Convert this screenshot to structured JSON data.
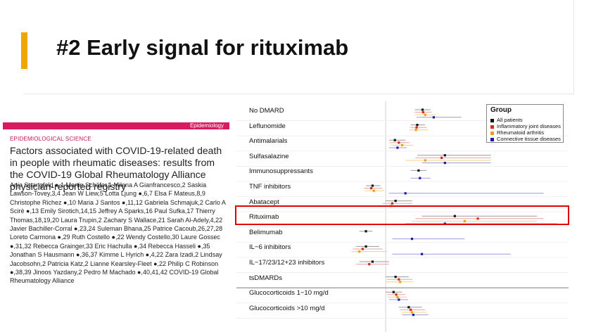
{
  "slide": {
    "title": "#2 Early signal for rituximab",
    "accent_color": "#f0a500"
  },
  "paper": {
    "bar_label": "Epidemiology",
    "bar_color": "#d81b60",
    "section": "EPIDEMIOLOGICAL SCIENCE",
    "title": "Factors associated with COVID-19-related death in people with rheumatic diseases: results from the COVID-19 Global Rheumatology Alliance physician-reported registry",
    "authors": "Anja Strangfeld ●,1 Martin Schäfer,1 Milena A Gianfrancesco,2 Saskia Lawson-Tovey,3,4 Jean W Liew,5 Lotta Ljung ●,6,7 Elsa F Mateus,8,9 Christophe Richez ●,10 Maria J Santos ●,11,12 Gabriela Schmajuk,2 Carlo A Scirè ●,13 Emily Sirotich,14,15 Jeffrey A Sparks,16 Paul Sufka,17 Thierry Thomas,18,19,20 Laura Trupin,2 Zachary S Wallace,21 Sarah Al-Adely,4,22 Javier Bachiller-Corral ●,23,24 Suleman Bhana,25 Patrice Cacoub,26,27,28 Loreto Carmona ●,29 Ruth Costello ●,22 Wendy Costello,30 Laure Gossec ●,31,32 Rebecca Grainger,33 Eric Hachulla ●,34 Rebecca Hasseli ●,35 Jonathan S Hausmann ●,36,37 Kimme L Hyrich ●,4,22 Zara Izadi,2 Lindsay Jacobsohn,2 Patricia Katz,2 Lianne Kearsley-Fleet ●,22 Philip C Robinson ●,38,39 Jinoos Yazdany,2 Pedro M Machado ●,40,41,42 COVID-19 Global Rheumatology Alliance"
  },
  "chart_data": {
    "type": "forest",
    "legend": {
      "title": "Group",
      "position": "top-right",
      "entries": [
        {
          "name": "All patients",
          "color": "#111111"
        },
        {
          "name": "Inflammatory joint diseases",
          "color": "#d62b1f"
        },
        {
          "name": "Rheumatoid arthritis",
          "color": "#f0a000"
        },
        {
          "name": "Connective tissue diseases",
          "color": "#1a1aa8"
        }
      ]
    },
    "highlight": "Rituximab",
    "rows": [
      {
        "label": "No DMARD",
        "est": [
          0.56,
          0.57,
          0.6,
          0.73
        ],
        "lo": [
          0.44,
          0.44,
          0.44,
          0.47
        ],
        "hi": [
          0.68,
          0.7,
          0.76,
          1.15
        ]
      },
      {
        "label": "Leflunomide",
        "est": [
          0.48,
          0.47,
          0.46,
          null
        ],
        "lo": [
          0.38,
          0.37,
          0.36,
          null
        ],
        "hi": [
          0.6,
          0.62,
          0.65,
          null
        ]
      },
      {
        "label": "Antimalarials",
        "est": [
          0.14,
          0.2,
          0.25,
          0.18
        ],
        "lo": [
          0.05,
          0.06,
          0.08,
          0.05
        ],
        "hi": [
          0.3,
          0.36,
          0.42,
          0.32
        ]
      },
      {
        "label": "Sulfasalazine",
        "est": [
          0.9,
          0.85,
          0.6,
          0.9
        ],
        "lo": [
          0.48,
          0.45,
          0.3,
          0.55
        ],
        "hi": [
          1.6,
          1.6,
          1.6,
          1.6
        ]
      },
      {
        "label": "Immunosuppressants",
        "est": [
          0.5,
          null,
          null,
          0.52
        ],
        "lo": [
          0.38,
          null,
          null,
          0.38
        ],
        "hi": [
          0.62,
          null,
          null,
          0.68
        ]
      },
      {
        "label": "TNF inhibitors",
        "est": [
          -0.2,
          -0.22,
          -0.18,
          0.3
        ],
        "lo": [
          -0.3,
          -0.33,
          -0.32,
          0.05
        ],
        "hi": [
          -0.08,
          -0.05,
          -0.02,
          2.4
        ]
      },
      {
        "label": "Abatacept",
        "est": [
          0.15,
          0.1,
          0.08,
          null
        ],
        "lo": [
          0.0,
          -0.05,
          -0.05,
          null
        ],
        "hi": [
          0.4,
          0.4,
          0.4,
          null
        ]
      },
      {
        "label": "Rituximab",
        "est": [
          1.05,
          1.4,
          1.2,
          0.9
        ],
        "lo": [
          0.55,
          0.45,
          0.4,
          0.3
        ],
        "hi": [
          2.3,
          2.4,
          2.3,
          2.6
        ]
      },
      {
        "label": "Belimumab",
        "est": [
          -0.3,
          null,
          null,
          0.4
        ],
        "lo": [
          -0.4,
          null,
          null,
          0.1
        ],
        "hi": [
          -0.2,
          null,
          null,
          1.2
        ]
      },
      {
        "label": "IL−6 inhibitors",
        "est": [
          -0.3,
          -0.35,
          -0.4,
          0.55
        ],
        "lo": [
          -0.45,
          -0.5,
          -0.52,
          0.1
        ],
        "hi": [
          -0.1,
          -0.05,
          0.02,
          1.9
        ]
      },
      {
        "label": "IL−17/23/12+23 inhibitors",
        "est": [
          -0.2,
          -0.25,
          null,
          null
        ],
        "lo": [
          -0.4,
          -0.45,
          null,
          null
        ],
        "hi": [
          0.05,
          0.05,
          null,
          null
        ]
      },
      {
        "label": "tsDMARDs",
        "est": [
          0.15,
          0.2,
          0.22,
          null
        ],
        "lo": [
          0.0,
          0.02,
          0.0,
          null
        ],
        "hi": [
          0.35,
          0.4,
          0.42,
          null
        ]
      },
      {
        "label": "Glucocorticoids 1−10 mg/d",
        "est": [
          0.12,
          0.16,
          0.18,
          0.2
        ],
        "lo": [
          0.0,
          0.02,
          0.03,
          0.05
        ],
        "hi": [
          0.25,
          0.3,
          0.32,
          0.34
        ]
      },
      {
        "label": "Glucocorticoids >10 mg/d",
        "est": [
          0.35,
          0.38,
          0.4,
          0.42
        ],
        "lo": [
          0.2,
          0.22,
          0.24,
          0.25
        ],
        "hi": [
          0.55,
          0.6,
          0.62,
          0.65
        ]
      }
    ],
    "reference_line": 0
  }
}
